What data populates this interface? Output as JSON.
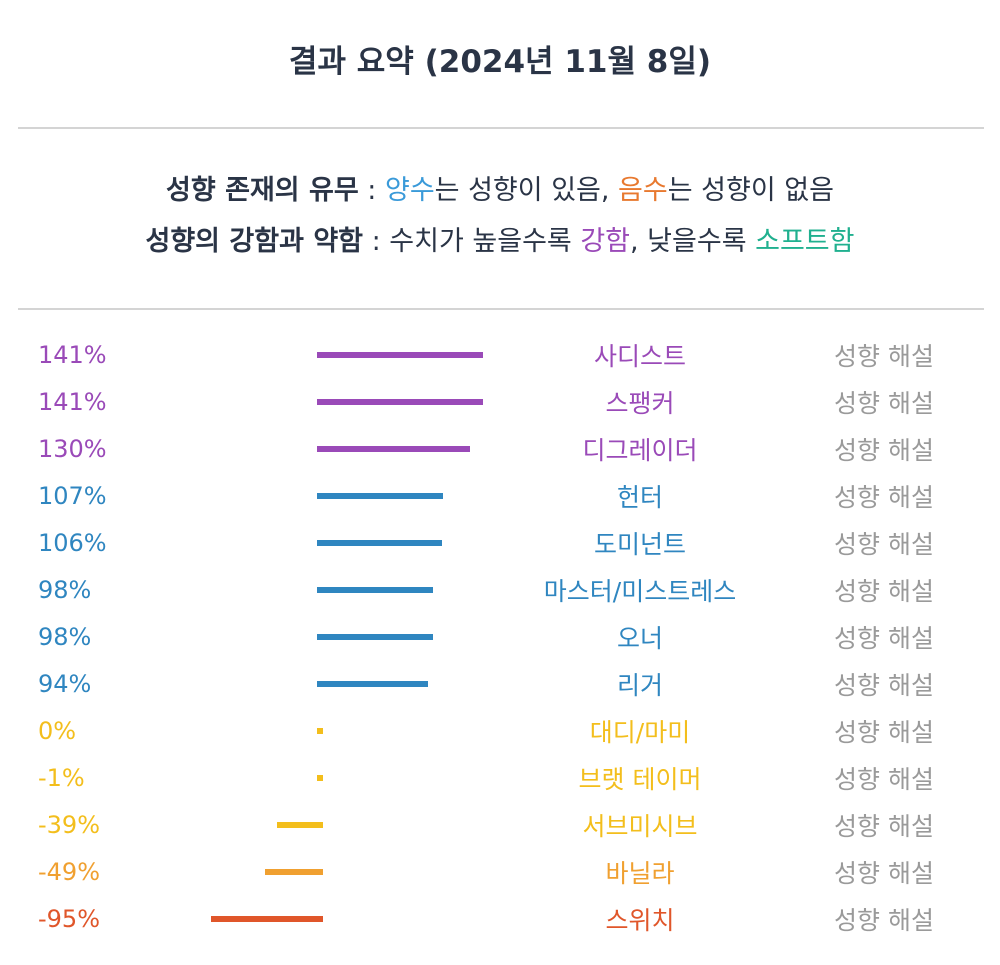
{
  "title": "결과 요약 (2024년 11월 8일)",
  "legend": {
    "line1": {
      "label": "성향 존재의 유무",
      "sep": " : ",
      "pos": "양수",
      "mid1": "는 성향이 있음, ",
      "neg": "음수",
      "mid2": "는 성향이 없음"
    },
    "line2": {
      "label": "성향의 강함과 약함",
      "sep": " : ",
      "mid1": "수치가 높을수록 ",
      "strong": "강함",
      "mid2": ", 낮을수록 ",
      "soft": "소프트함"
    }
  },
  "colors": {
    "purple": "#9a4ab8",
    "blue": "#2f86c0",
    "yellow": "#f3be1c",
    "orange": "#f0a030",
    "red": "#e0562a"
  },
  "chart_data": {
    "type": "bar",
    "orientation": "horizontal",
    "categories": [
      "사디스트",
      "스팽커",
      "디그레이더",
      "헌터",
      "도미넌트",
      "마스터/미스트레스",
      "오너",
      "리거",
      "대디/마미",
      "브랫 테이머",
      "서브미시브",
      "바닐라",
      "스위치"
    ],
    "values": [
      141,
      141,
      130,
      107,
      106,
      98,
      98,
      94,
      0,
      -1,
      -39,
      -49,
      -95
    ],
    "labels": [
      "141%",
      "141%",
      "130%",
      "107%",
      "106%",
      "98%",
      "98%",
      "94%",
      "0%",
      "-1%",
      "-39%",
      "-49%",
      "-95%"
    ],
    "unit": "%",
    "title": "결과 요약 (2024년 11월 8일)",
    "link_label": "성향 해설"
  }
}
